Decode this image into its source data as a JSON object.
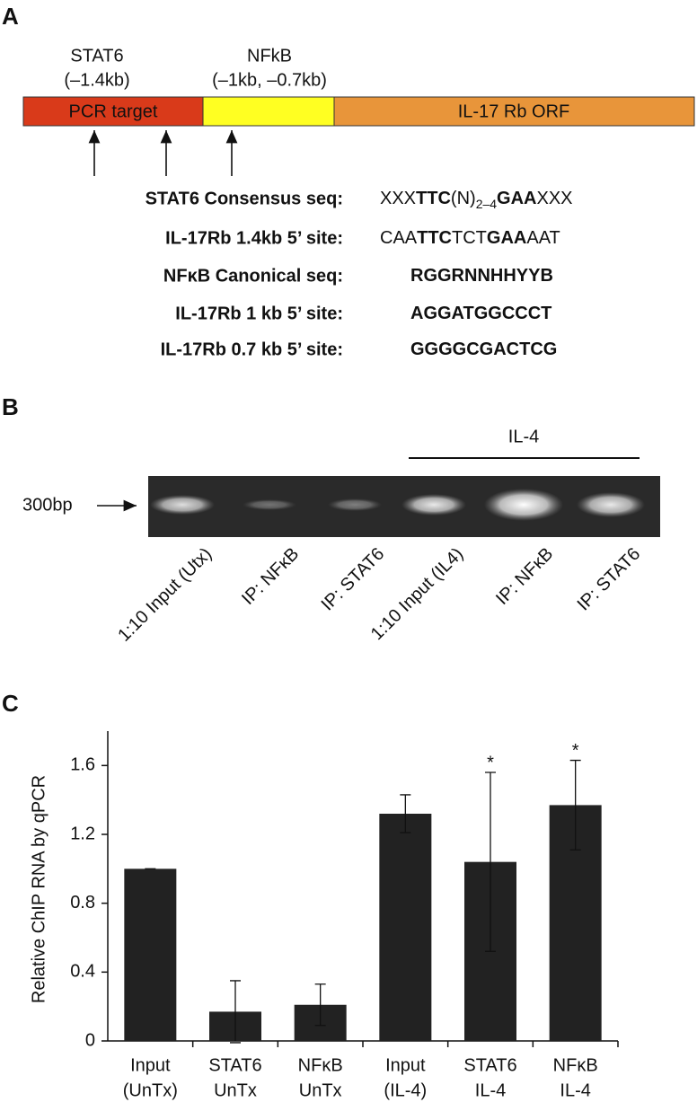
{
  "panel_a": {
    "label": "A",
    "sites": [
      {
        "name": "STAT6",
        "range": "(–1.4kb)"
      },
      {
        "name": "NFkB",
        "range": "(–1kb, –0.7kb)"
      }
    ],
    "regions": [
      "PCR target",
      "IL-17 Rb ORF"
    ],
    "sequences": [
      {
        "label": "STAT6 Consensus seq:",
        "seq": [
          "XXX",
          "TTC",
          "(N)",
          "2–4",
          "GAA",
          "XXX"
        ]
      },
      {
        "label": "IL-17Rb 1.4kb 5’ site:",
        "seq": [
          "CAA",
          "TTC",
          "TCT",
          "GAA",
          "AAT"
        ]
      },
      {
        "label": "NFκB Canonical seq:",
        "seq": [
          "RGGRNNHHYYB"
        ]
      },
      {
        "label": "IL-17Rb 1 kb 5’ site:",
        "seq": [
          "AGGATGGCCCT"
        ]
      },
      {
        "label": "IL-17Rb 0.7 kb 5’ site:",
        "seq": [
          "GGGGCGACTCG"
        ]
      }
    ]
  },
  "panel_b": {
    "label": "B",
    "treatment": "IL-4",
    "marker": "300bp",
    "lanes": [
      "1:10 Input (Utx)",
      "IP: NFκB",
      "IP: STAT6",
      "1:10 Input (IL4)",
      "IP: NFκB",
      "IP: STAT6"
    ]
  },
  "panel_c": {
    "label": "C"
  },
  "chart_data": {
    "type": "bar",
    "y_label": "Relative ChIP RNA by qPCR",
    "categories": [
      [
        "Input",
        "(UnTx)"
      ],
      [
        "STAT6",
        "UnTx"
      ],
      [
        "NFκB",
        "UnTx"
      ],
      [
        "Input",
        "(IL-4)"
      ],
      [
        "STAT6",
        "IL-4"
      ],
      [
        "NFκB",
        "IL-4"
      ]
    ],
    "values": [
      1.0,
      0.17,
      0.21,
      1.32,
      1.04,
      1.37
    ],
    "errors": [
      0,
      0.18,
      0.12,
      0.11,
      0.52,
      0.26
    ],
    "significance": [
      null,
      null,
      null,
      null,
      "*",
      "*"
    ],
    "color": "#222222",
    "ylim": [
      0,
      1.8
    ],
    "yticks": [
      0,
      {
        "value": 0.4,
        "label": "0.4"
      },
      {
        "value": 0.8,
        "label": "0.8"
      },
      {
        "value": 1.2,
        "label": "1.2"
      },
      {
        "value": 1.6,
        "label": "1.6"
      }
    ]
  }
}
